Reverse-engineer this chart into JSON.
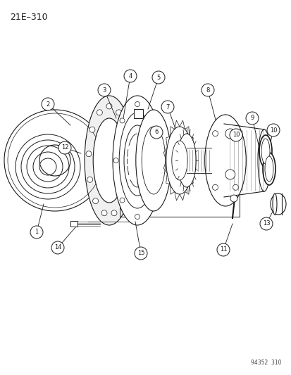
{
  "title": "21E–310",
  "watermark": "94352  310",
  "bg_color": "#ffffff",
  "line_color": "#1a1a1a",
  "fig_width": 4.14,
  "fig_height": 5.33,
  "dpi": 100
}
